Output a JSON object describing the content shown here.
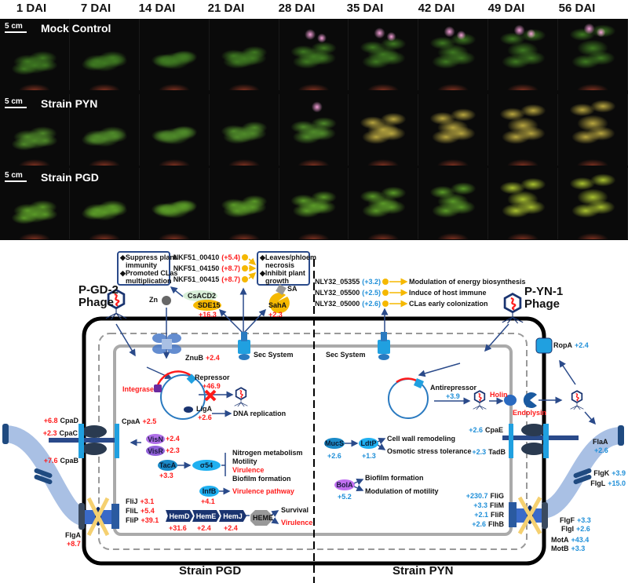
{
  "header": {
    "days": [
      "1 DAI",
      "7 DAI",
      "14 DAI",
      "21 DAI",
      "28 DAI",
      "35 DAI",
      "42 DAI",
      "49 DAI",
      "56 DAI"
    ]
  },
  "photo_rows": [
    {
      "title": "Mock Control",
      "scale": "5 cm"
    },
    {
      "title": "Strain PYN",
      "scale": "5 cm"
    },
    {
      "title": "Strain PGD",
      "scale": "5 cm"
    }
  ],
  "colors": {
    "upregulated_pgd": "#ff1a1a",
    "upregulated_pyn": "#1f8fd8",
    "protein": "#1a3470",
    "membrane_outer": "#000000"
  },
  "pgd": {
    "title": "Strain PGD",
    "phage": "P-GD-2",
    "phage2": "Phage",
    "box_left": [
      "◆Suppress plant",
      "immunity",
      "◆Promoted CLas",
      "multiplication"
    ],
    "box_right": [
      "◆Leaves/phloem",
      "necrosis",
      "◆Inhibit plant",
      "growth"
    ],
    "effectors": [
      {
        "gene": "NKF51_00410",
        "fc": "(+5.4)"
      },
      {
        "gene": "NKF51_04150",
        "fc": "(+8.7)"
      },
      {
        "gene": "NKF51_00415",
        "fc": "(+8.7)"
      }
    ],
    "zn": "Zn",
    "csacd2": "CsACD2",
    "sde15": "SDE15",
    "sde15_fc": "+16.3",
    "sa": "SA",
    "saha": "SahA",
    "saha_fc": "+2.3",
    "znub": "ZnuB",
    "znub_fc": "+2.4",
    "sec": "Sec System",
    "integrase": "Integrase",
    "repressor": "Repressor",
    "repressor_fc": "+46.9",
    "liga": "LigA",
    "liga_fc": "+2.6",
    "dna_rep": "DNA replication",
    "cpad": "CpaD",
    "cpad_fc": "+6.8",
    "cpac": "CpaC",
    "cpac_fc": "+2.3",
    "cpab": "CpaB",
    "cpab_fc": "+7.6",
    "cpaa": "CpaA",
    "cpaa_fc": "+2.5",
    "visn": "VisN",
    "visn_fc": "+2.4",
    "visr": "VisR",
    "visr_fc": "+2.3",
    "taca": "TacA",
    "taca_fc": "+3.3",
    "sigma": "σ54",
    "sigma_targets": [
      "Nitrogen metabolism",
      "Motility",
      "Virulence",
      "Biofilm formation"
    ],
    "infb": "InfB",
    "infb_fc": "+4.1",
    "vir_path": "Virulence pathway",
    "flij": "FliJ",
    "flij_fc": "+3.1",
    "flil": "FliL",
    "flil_fc": "+5.4",
    "flip": "FliP",
    "flip_fc": "+39.1",
    "hemd": "HemD",
    "hemd_fc": "+31.6",
    "heme_e": "HemE",
    "heme_e_fc": "+2.4",
    "hemj": "HemJ",
    "hemj_fc": "+2.4",
    "heme": "HEME",
    "survival": "Survival",
    "virulence": "Virulence",
    "flga": "FlgA",
    "flga_fc": "+8.7"
  },
  "pyn": {
    "title": "Strain PYN",
    "phage": "P-YN-1",
    "phage2": "Phage",
    "effectors": [
      {
        "gene": "NLY32_05355",
        "fc": "(+3.2)",
        "role": "Modulation of energy biosynthesis"
      },
      {
        "gene": "NLY32_05500",
        "fc": "(+2.5)",
        "role": "Induce of host immune"
      },
      {
        "gene": "NLY32_05000",
        "fc": "(+2.6)",
        "role": "CLas early colonization"
      }
    ],
    "sec": "Sec System",
    "ropa": "RopA",
    "ropa_fc": "+2.4",
    "antirepressor": "Antirepressor",
    "antirepressor_fc": "+3.9",
    "holin": "Holin",
    "endolysin": "Endolysin",
    "mucs": "MucS",
    "mucs_fc": "+2.6",
    "ldtp": "LdtP",
    "ldtp_fc": "+1.3",
    "ldtp_targets": [
      "Cell wall remodeling",
      "Osmotic stress tolerance"
    ],
    "bola": "BolA",
    "bola_fc": "+5.2",
    "bola_targets": [
      "Biofilm formation",
      "Modulation of motility"
    ],
    "cpae": "CpaE",
    "cpae_fc": "+2.6",
    "tadb": "TadB",
    "tadb_fc": "+2.3",
    "flaa": "FlaA",
    "flaa_fc": "+2.6",
    "flgk": "FlgK",
    "flgk_fc": "+3.9",
    "flgl": "FlgL",
    "flgl_fc": "+15.0",
    "flig": "FliG",
    "flig_fc": "+230.7",
    "flim": "FliM",
    "flim_fc": "+3.3",
    "flir": "FliR",
    "flir_fc": "+2.1",
    "flhb": "FlhB",
    "flhb_fc": "+2.6",
    "flgf": "FlgF",
    "flgf_fc": "+3.3",
    "flgi": "FlgI",
    "flgi_fc": "+2.6",
    "mota": "MotA",
    "mota_fc": "+43.4",
    "motb": "MotB",
    "motb_fc": "+3.3"
  }
}
